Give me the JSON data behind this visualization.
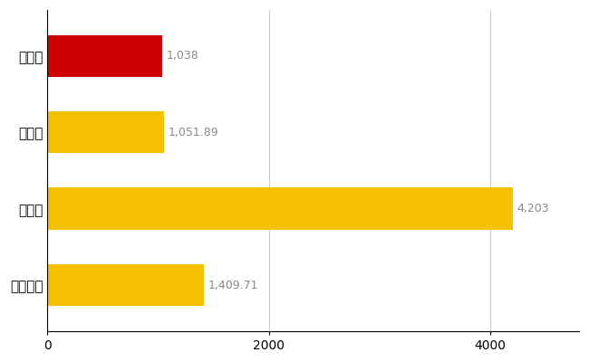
{
  "categories": [
    "笠間市",
    "県平均",
    "県最大",
    "全国平均"
  ],
  "values": [
    1038,
    1051.89,
    4203,
    1409.71
  ],
  "labels": [
    "1,038",
    "1,051.89",
    "4,203",
    "1,409.71"
  ],
  "bar_colors": [
    "#cc0000",
    "#f5c000",
    "#f5c000",
    "#f5c000"
  ],
  "label_color": "#888888",
  "background_color": "#ffffff",
  "grid_color": "#cccccc",
  "xlim": [
    0,
    4800
  ],
  "xticks": [
    0,
    2000,
    4000
  ],
  "bar_height": 0.55,
  "label_fontsize": 9,
  "tick_fontsize": 10,
  "ytick_fontsize": 11
}
